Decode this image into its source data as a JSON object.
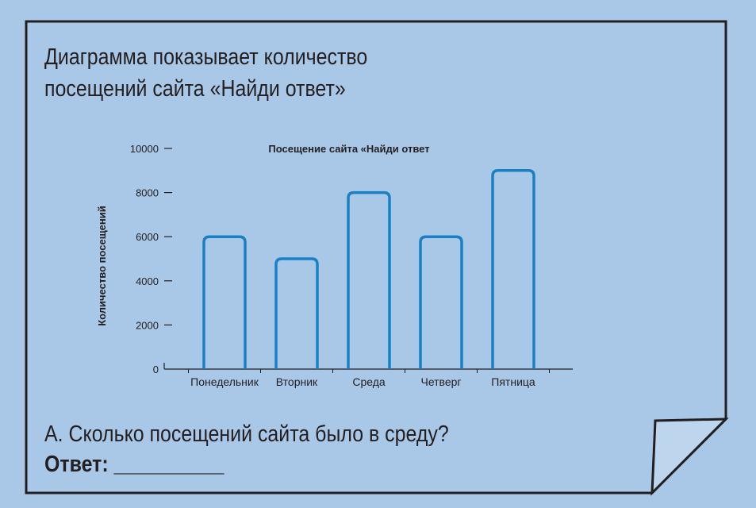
{
  "intro": {
    "line1": "Диаграмма показывает количество",
    "line2": "посещений сайта «Найди ответ»"
  },
  "question": {
    "text": "А. Сколько посещений сайта было в среду?",
    "answer_label": "Ответ: __________"
  },
  "colors": {
    "background": "#a9c8e8",
    "bar_stroke": "#1a80c4",
    "frame": "#231f20"
  },
  "chart_data": {
    "type": "bar",
    "title": "Посещение сайта «Найди ответ",
    "ylabel": "Количество посещений",
    "xlabel": "",
    "categories": [
      "Понедельник",
      "Вторник",
      "Среда",
      "Четверг",
      "Пятница"
    ],
    "values": [
      6000,
      5000,
      8000,
      6000,
      9000
    ],
    "ylim": [
      0,
      10000
    ],
    "yticks": [
      0,
      2000,
      4000,
      6000,
      8000,
      10000
    ],
    "grid": false,
    "bar_style": "outline"
  }
}
